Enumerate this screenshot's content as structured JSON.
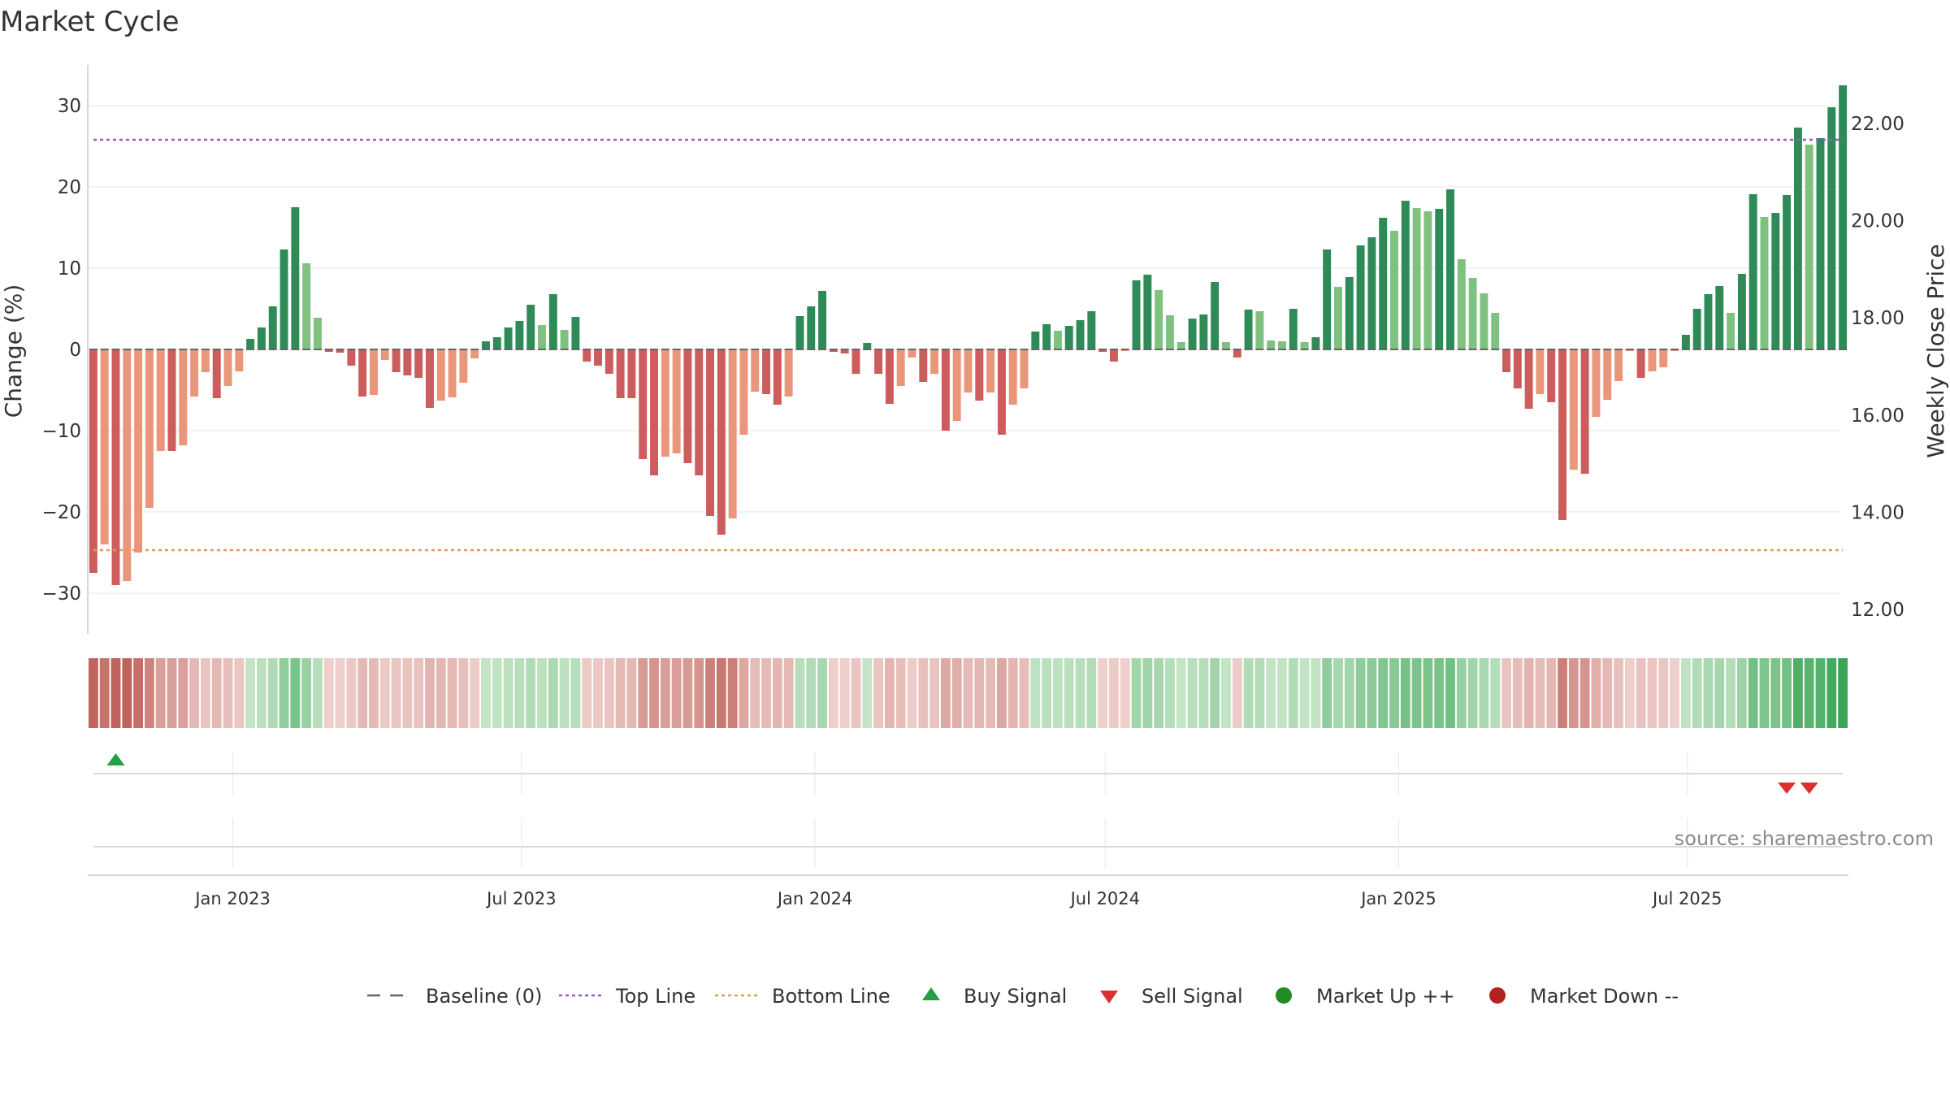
{
  "chart_data": {
    "type": "bar",
    "title": "Market Cycle",
    "ylabel_left": "Change (%)",
    "ylabel_right": "Weekly Close Price",
    "ylim": [
      -35,
      35
    ],
    "y_ticks": [
      30,
      20,
      10,
      0,
      -10,
      -20,
      -30
    ],
    "y_tick_labels": [
      "30",
      "20",
      "10",
      "0",
      "−10",
      "−20",
      "−30"
    ],
    "right_ylim": [
      11.5,
      23.2
    ],
    "right_ticks": [
      22,
      20,
      18,
      16,
      14,
      12
    ],
    "right_tick_labels": [
      "22.00",
      "20.00",
      "18.00",
      "16.00",
      "14.00",
      "12.00"
    ],
    "top_line": 25.8,
    "bottom_line": -24.7,
    "x_start": "2022-10-02",
    "x_end": "2025-10-10",
    "date_ticks": [
      {
        "date": "2023-01-01",
        "label": "Jan 2023"
      },
      {
        "date": "2023-07-01",
        "label": "Jul 2023"
      },
      {
        "date": "2024-01-01",
        "label": "Jan 2024"
      },
      {
        "date": "2024-07-01",
        "label": "Jul 2024"
      },
      {
        "date": "2025-01-01",
        "label": "Jan 2025"
      },
      {
        "date": "2025-07-01",
        "label": "Jul 2025"
      }
    ],
    "bars": [
      -27.5,
      -24,
      -29,
      -28.5,
      -25,
      -19.5,
      -12.5,
      -12.5,
      -11.8,
      -5.8,
      -2.8,
      -6,
      -4.5,
      -2.7,
      1.3,
      2.7,
      5.3,
      12.3,
      17.5,
      10.6,
      3.9,
      -0.3,
      -0.4,
      -2,
      -5.8,
      -5.6,
      -1.3,
      -2.8,
      -3.2,
      -3.5,
      -7.2,
      -6.3,
      -5.9,
      -4.1,
      -1.1,
      1,
      1.5,
      2.7,
      3.5,
      5.5,
      3,
      6.8,
      2.4,
      4,
      -1.5,
      -2,
      -3,
      -6,
      -6,
      -13.5,
      -15.5,
      -13.2,
      -12.8,
      -14,
      -15.5,
      -20.5,
      -22.8,
      -20.8,
      -10.5,
      -5.2,
      -5.5,
      -6.8,
      -5.8,
      4.1,
      5.3,
      7.2,
      -0.3,
      -0.5,
      -3,
      0.8,
      -3,
      -6.7,
      -4.5,
      -1,
      -4,
      -3,
      -10,
      -8.8,
      -5.3,
      -6.3,
      -5.3,
      -10.5,
      -6.8,
      -4.8,
      2.2,
      3.1,
      2.3,
      2.9,
      3.6,
      4.7,
      -0.3,
      -1.5,
      -0.2,
      8.5,
      9.2,
      7.3,
      4.2,
      0.9,
      3.8,
      4.3,
      8.3,
      0.9,
      -1,
      4.9,
      4.7,
      1.1,
      1,
      5,
      0.9,
      1.5,
      12.3,
      7.7,
      8.9,
      12.8,
      13.8,
      16.2,
      14.6,
      18.3,
      17.4,
      17,
      17.3,
      19.7,
      11.1,
      8.8,
      6.9,
      4.5,
      -2.8,
      -4.8,
      -7.3,
      -5.5,
      -6.5,
      -21,
      -14.8,
      -15.3,
      -8.3,
      -6.2,
      -3.9,
      -0.2,
      -3.5,
      -2.7,
      -2.2,
      -0.2,
      1.8,
      5,
      6.8,
      7.8,
      4.5,
      9.3,
      19.1,
      16.3,
      16.8,
      19,
      27.3,
      25.2,
      26,
      29.8,
      32.5
    ],
    "bar_colors": {
      "strong_up": "#2e8b57",
      "weak_up": "#7fc27f",
      "strong_down": "#cd5c5c",
      "weak_down": "#e9967a"
    },
    "heat_colors": {
      "up_light": "#c8e6c9",
      "up_dark": "#3aa655",
      "down_light": "#eed0cc",
      "down_dark": "#c0635c"
    },
    "buy_signals": [
      2
    ],
    "sell_signals": [
      151,
      153
    ],
    "colors": {
      "top_line": "#9b59d0",
      "bottom_line": "#e39a55",
      "buy": "#22a045",
      "sell": "#d9322f",
      "market_up": "#228b22",
      "market_down": "#b22222",
      "baseline": "#666666"
    },
    "source": "source: sharemaestro.com",
    "legend": [
      {
        "key": "baseline",
        "label": "Baseline (0)"
      },
      {
        "key": "top",
        "label": "Top Line"
      },
      {
        "key": "bottom",
        "label": "Bottom Line"
      },
      {
        "key": "buy",
        "label": "Buy Signal"
      },
      {
        "key": "sell",
        "label": "Sell Signal"
      },
      {
        "key": "up",
        "label": "Market Up ++"
      },
      {
        "key": "down",
        "label": "Market Down --"
      }
    ]
  }
}
